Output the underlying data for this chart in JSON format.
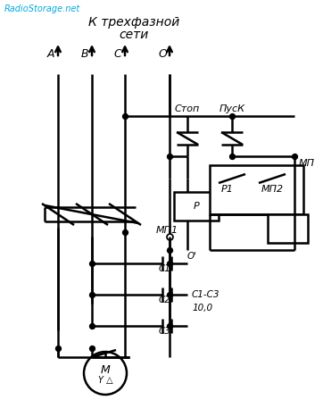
{
  "bg_color": "#ffffff",
  "line_color": "#000000",
  "watermark": "RadioStorage.net",
  "title_line1": "К трехфазной",
  "title_line2": "сети"
}
